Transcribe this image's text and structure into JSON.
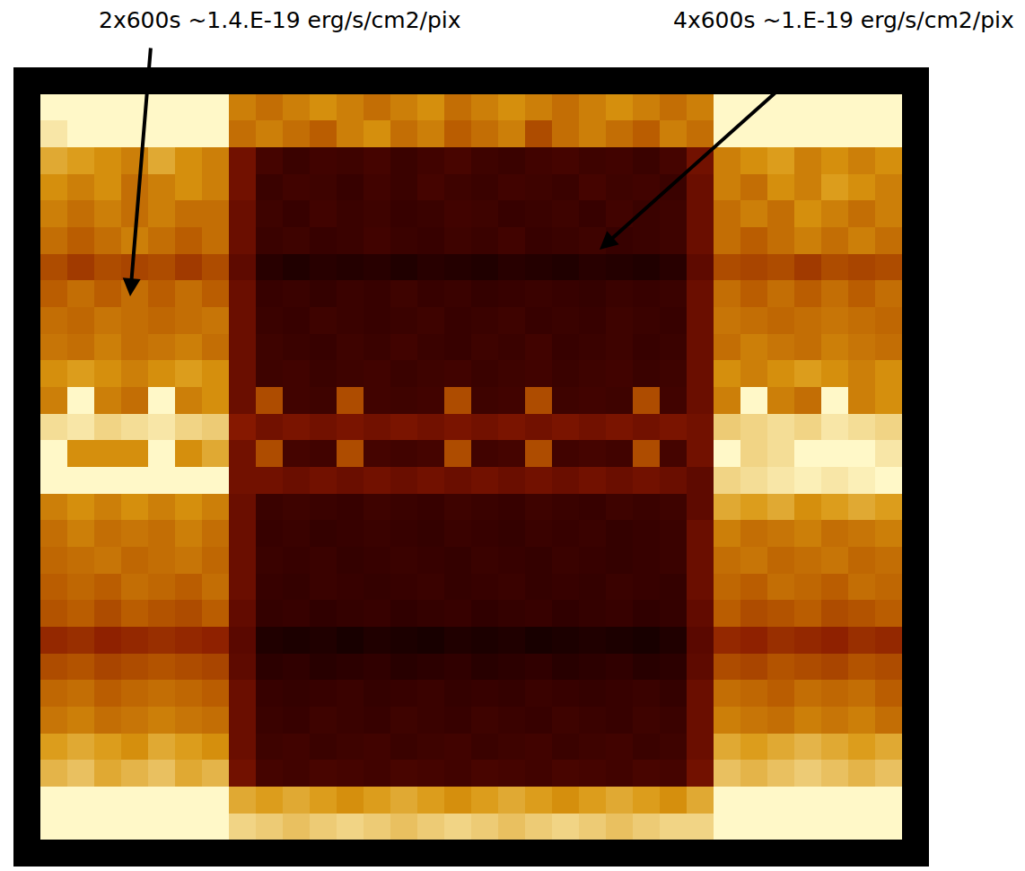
{
  "chart_data": {
    "type": "heatmap",
    "annotations": [
      "2x600s ~1.4.E-19 erg/s/cm2/pix",
      "4x600s ~1.E-19 erg/s/cm2/pix"
    ],
    "tick_labels": false,
    "zlim": [
      0.8,
      2.0
    ],
    "cells": [
      [
        null,
        null,
        null,
        null,
        null,
        null,
        null,
        null,
        null,
        null,
        null,
        null,
        null,
        null,
        null,
        null,
        null,
        null,
        null,
        null,
        null,
        null,
        null,
        null,
        null,
        null,
        null,
        null,
        null,
        null,
        null,
        null,
        null,
        null
      ],
      [
        null,
        2.0,
        2.0,
        2.0,
        2.0,
        2.0,
        2.0,
        2.0,
        1.45,
        1.4,
        1.45,
        1.5,
        1.45,
        1.4,
        1.45,
        1.5,
        1.4,
        1.45,
        1.5,
        1.45,
        1.4,
        1.45,
        1.5,
        1.45,
        1.4,
        1.45,
        2.0,
        2.0,
        2.0,
        2.0,
        2.0,
        2.0,
        2.0,
        null
      ],
      [
        null,
        1.9,
        2.0,
        2.0,
        2.0,
        2.0,
        2.0,
        2.0,
        1.4,
        1.45,
        1.4,
        1.35,
        1.45,
        1.5,
        1.4,
        1.45,
        1.35,
        1.4,
        1.45,
        1.3,
        1.4,
        1.45,
        1.4,
        1.35,
        1.45,
        1.4,
        2.0,
        2.0,
        2.0,
        2.0,
        2.0,
        2.0,
        2.0,
        null
      ],
      [
        null,
        1.6,
        1.55,
        1.5,
        1.45,
        1.6,
        1.5,
        1.45,
        1.1,
        0.98,
        0.95,
        0.97,
        0.96,
        0.98,
        0.95,
        0.97,
        0.99,
        0.96,
        0.95,
        0.97,
        0.98,
        0.96,
        0.97,
        0.95,
        0.98,
        1.1,
        1.45,
        1.5,
        1.55,
        1.45,
        1.5,
        1.45,
        1.5,
        null
      ],
      [
        null,
        1.5,
        1.45,
        1.5,
        1.4,
        1.45,
        1.5,
        1.45,
        1.1,
        0.95,
        0.97,
        0.96,
        0.94,
        0.97,
        0.95,
        0.98,
        0.96,
        0.95,
        0.97,
        0.96,
        0.95,
        0.98,
        0.96,
        0.97,
        0.95,
        1.08,
        1.45,
        1.4,
        1.5,
        1.45,
        1.55,
        1.5,
        1.45,
        null
      ],
      [
        null,
        1.45,
        1.4,
        1.45,
        1.4,
        1.45,
        1.4,
        1.4,
        1.08,
        0.96,
        0.94,
        0.97,
        0.95,
        0.96,
        0.94,
        0.95,
        0.97,
        0.96,
        0.94,
        0.95,
        0.96,
        0.94,
        0.97,
        0.95,
        0.96,
        1.08,
        1.4,
        1.45,
        1.4,
        1.5,
        1.45,
        1.4,
        1.45,
        null
      ],
      [
        null,
        1.4,
        1.35,
        1.4,
        1.45,
        1.4,
        1.35,
        1.4,
        1.08,
        0.95,
        0.96,
        0.94,
        0.95,
        0.97,
        0.95,
        0.94,
        0.96,
        0.95,
        0.97,
        0.94,
        0.95,
        0.96,
        0.94,
        0.95,
        0.96,
        1.08,
        1.4,
        1.35,
        1.4,
        1.45,
        1.4,
        1.45,
        1.4,
        null
      ],
      [
        null,
        1.3,
        1.25,
        1.3,
        1.28,
        1.3,
        1.25,
        1.3,
        1.05,
        0.9,
        0.88,
        0.9,
        0.89,
        0.9,
        0.88,
        0.9,
        0.89,
        0.88,
        0.9,
        0.89,
        0.88,
        0.9,
        0.89,
        0.88,
        0.9,
        1.05,
        1.3,
        1.28,
        1.3,
        1.25,
        1.3,
        1.28,
        1.3,
        null
      ],
      [
        null,
        1.35,
        1.4,
        1.35,
        1.4,
        1.35,
        1.4,
        1.35,
        1.08,
        0.94,
        0.95,
        0.93,
        0.95,
        0.94,
        0.96,
        0.94,
        0.95,
        0.93,
        0.94,
        0.95,
        0.94,
        0.93,
        0.95,
        0.94,
        0.95,
        1.08,
        1.4,
        1.35,
        1.4,
        1.35,
        1.4,
        1.35,
        1.4,
        null
      ],
      [
        null,
        1.4,
        1.38,
        1.42,
        1.4,
        1.38,
        1.4,
        1.42,
        1.08,
        0.95,
        0.94,
        0.96,
        0.95,
        0.94,
        0.95,
        0.96,
        0.94,
        0.95,
        0.96,
        0.94,
        0.95,
        0.94,
        0.96,
        0.95,
        0.94,
        1.08,
        1.42,
        1.4,
        1.38,
        1.4,
        1.42,
        1.4,
        1.38,
        null
      ],
      [
        null,
        1.42,
        1.4,
        1.45,
        1.4,
        1.42,
        1.45,
        1.4,
        1.08,
        0.96,
        0.95,
        0.94,
        0.96,
        0.95,
        0.97,
        0.95,
        0.94,
        0.96,
        0.95,
        0.97,
        0.94,
        0.95,
        0.96,
        0.94,
        0.95,
        1.08,
        1.4,
        1.45,
        1.42,
        1.4,
        1.45,
        1.42,
        1.4,
        null
      ],
      [
        null,
        1.5,
        1.55,
        1.5,
        1.45,
        1.5,
        1.55,
        1.5,
        1.08,
        0.96,
        0.97,
        0.95,
        0.96,
        0.97,
        0.95,
        0.96,
        0.97,
        0.95,
        0.96,
        0.97,
        0.95,
        0.96,
        0.97,
        0.95,
        0.96,
        1.08,
        1.5,
        1.45,
        1.5,
        1.55,
        1.5,
        1.45,
        1.5,
        null
      ],
      [
        null,
        1.45,
        2.0,
        1.45,
        1.4,
        2.0,
        1.45,
        1.5,
        1.08,
        1.3,
        0.97,
        0.96,
        1.3,
        0.97,
        0.96,
        0.97,
        1.3,
        0.96,
        0.97,
        1.3,
        0.96,
        0.97,
        0.96,
        1.3,
        0.97,
        1.08,
        1.45,
        2.0,
        1.45,
        1.4,
        2.0,
        1.45,
        1.5,
        null
      ],
      [
        null,
        1.85,
        1.9,
        1.8,
        1.85,
        1.9,
        1.8,
        1.75,
        1.15,
        1.1,
        1.12,
        1.1,
        1.12,
        1.1,
        1.12,
        1.1,
        1.12,
        1.1,
        1.12,
        1.1,
        1.12,
        1.1,
        1.12,
        1.1,
        1.12,
        1.1,
        1.75,
        1.8,
        1.85,
        1.8,
        1.9,
        1.85,
        1.8,
        null
      ],
      [
        null,
        2.0,
        1.5,
        1.5,
        1.5,
        2.0,
        1.5,
        1.6,
        1.1,
        1.3,
        0.98,
        0.97,
        1.3,
        0.98,
        0.97,
        0.98,
        1.3,
        0.97,
        0.98,
        1.3,
        0.97,
        0.98,
        0.97,
        1.3,
        0.98,
        1.1,
        2.0,
        1.8,
        1.85,
        2.0,
        2.0,
        2.0,
        1.9,
        null
      ],
      [
        null,
        2.0,
        2.0,
        2.0,
        2.0,
        2.0,
        2.0,
        2.0,
        1.1,
        1.1,
        1.08,
        1.1,
        1.08,
        1.1,
        1.08,
        1.1,
        1.08,
        1.1,
        1.08,
        1.1,
        1.08,
        1.1,
        1.08,
        1.1,
        1.08,
        1.05,
        1.8,
        1.85,
        1.9,
        1.95,
        1.9,
        1.95,
        2.0,
        null
      ],
      [
        null,
        1.45,
        1.5,
        1.45,
        1.5,
        1.45,
        1.5,
        1.45,
        1.08,
        0.95,
        0.96,
        0.95,
        0.94,
        0.96,
        0.95,
        0.94,
        0.96,
        0.95,
        0.94,
        0.96,
        0.95,
        0.94,
        0.96,
        0.95,
        0.96,
        1.05,
        1.6,
        1.55,
        1.6,
        1.5,
        1.55,
        1.6,
        1.55,
        null
      ],
      [
        null,
        1.4,
        1.45,
        1.4,
        1.42,
        1.4,
        1.45,
        1.4,
        1.08,
        0.94,
        0.95,
        0.93,
        0.94,
        0.95,
        0.94,
        0.93,
        0.95,
        0.94,
        0.93,
        0.95,
        0.94,
        0.95,
        0.93,
        0.94,
        0.95,
        1.08,
        1.45,
        1.4,
        1.42,
        1.45,
        1.4,
        1.42,
        1.45,
        null
      ],
      [
        null,
        1.38,
        1.4,
        1.42,
        1.38,
        1.4,
        1.42,
        1.38,
        1.08,
        0.95,
        0.94,
        0.95,
        0.93,
        0.94,
        0.95,
        0.94,
        0.93,
        0.95,
        0.94,
        0.93,
        0.95,
        0.94,
        0.93,
        0.94,
        0.95,
        1.08,
        1.4,
        1.42,
        1.38,
        1.4,
        1.42,
        1.38,
        1.4,
        null
      ],
      [
        null,
        1.35,
        1.38,
        1.35,
        1.4,
        1.38,
        1.35,
        1.4,
        1.08,
        0.94,
        0.93,
        0.95,
        0.94,
        0.93,
        0.94,
        0.95,
        0.93,
        0.94,
        0.95,
        0.93,
        0.94,
        0.93,
        0.95,
        0.94,
        0.93,
        1.08,
        1.38,
        1.35,
        1.4,
        1.38,
        1.35,
        1.4,
        1.38,
        null
      ],
      [
        null,
        1.32,
        1.35,
        1.3,
        1.35,
        1.32,
        1.3,
        1.35,
        1.06,
        0.93,
        0.94,
        0.92,
        0.93,
        0.94,
        0.92,
        0.93,
        0.94,
        0.92,
        0.93,
        0.94,
        0.92,
        0.93,
        0.94,
        0.92,
        0.93,
        1.06,
        1.35,
        1.3,
        1.32,
        1.35,
        1.3,
        1.32,
        1.35,
        null
      ],
      [
        null,
        1.2,
        1.22,
        1.18,
        1.2,
        1.22,
        1.2,
        1.18,
        1.04,
        0.88,
        0.87,
        0.88,
        0.86,
        0.88,
        0.87,
        0.86,
        0.88,
        0.87,
        0.88,
        0.86,
        0.87,
        0.88,
        0.87,
        0.86,
        0.88,
        1.04,
        1.2,
        1.18,
        1.22,
        1.2,
        1.18,
        1.22,
        1.2,
        null
      ],
      [
        null,
        1.3,
        1.32,
        1.28,
        1.3,
        1.32,
        1.3,
        1.28,
        1.05,
        0.91,
        0.92,
        0.9,
        0.91,
        0.92,
        0.9,
        0.91,
        0.92,
        0.9,
        0.91,
        0.92,
        0.9,
        0.91,
        0.92,
        0.9,
        0.91,
        1.05,
        1.3,
        1.28,
        1.32,
        1.3,
        1.28,
        1.32,
        1.3,
        null
      ],
      [
        null,
        1.38,
        1.4,
        1.35,
        1.38,
        1.4,
        1.38,
        1.35,
        1.08,
        0.94,
        0.93,
        0.94,
        0.95,
        0.93,
        0.94,
        0.95,
        0.93,
        0.94,
        0.93,
        0.95,
        0.94,
        0.93,
        0.94,
        0.95,
        0.93,
        1.08,
        1.4,
        1.38,
        1.35,
        1.4,
        1.38,
        1.4,
        1.35,
        null
      ],
      [
        null,
        1.42,
        1.45,
        1.4,
        1.42,
        1.45,
        1.42,
        1.4,
        1.08,
        0.95,
        0.94,
        0.96,
        0.95,
        0.94,
        0.96,
        0.95,
        0.94,
        0.96,
        0.95,
        0.94,
        0.96,
        0.95,
        0.94,
        0.96,
        0.95,
        1.08,
        1.45,
        1.42,
        1.4,
        1.45,
        1.42,
        1.45,
        1.4,
        null
      ],
      [
        null,
        1.55,
        1.6,
        1.55,
        1.5,
        1.6,
        1.55,
        1.5,
        1.08,
        0.96,
        0.97,
        0.95,
        0.96,
        0.97,
        0.95,
        0.96,
        0.97,
        0.95,
        0.96,
        0.97,
        0.95,
        0.96,
        0.97,
        0.95,
        0.96,
        1.08,
        1.6,
        1.55,
        1.6,
        1.65,
        1.6,
        1.55,
        1.6,
        null
      ],
      [
        null,
        1.65,
        1.7,
        1.6,
        1.65,
        1.7,
        1.6,
        1.65,
        1.1,
        0.98,
        0.97,
        0.99,
        0.98,
        0.97,
        0.99,
        0.98,
        0.97,
        0.99,
        0.98,
        0.97,
        0.99,
        0.98,
        0.97,
        0.99,
        0.98,
        1.1,
        1.7,
        1.65,
        1.7,
        1.75,
        1.7,
        1.65,
        1.7,
        null
      ],
      [
        null,
        2.0,
        2.0,
        2.0,
        2.0,
        2.0,
        2.0,
        2.0,
        1.6,
        1.55,
        1.6,
        1.55,
        1.5,
        1.55,
        1.6,
        1.55,
        1.5,
        1.55,
        1.6,
        1.55,
        1.5,
        1.55,
        1.6,
        1.55,
        1.5,
        1.6,
        2.0,
        2.0,
        2.0,
        2.0,
        2.0,
        2.0,
        2.0,
        null
      ],
      [
        null,
        2.0,
        2.0,
        2.0,
        2.0,
        2.0,
        2.0,
        2.0,
        1.8,
        1.75,
        1.7,
        1.75,
        1.8,
        1.75,
        1.7,
        1.75,
        1.8,
        1.75,
        1.7,
        1.75,
        1.8,
        1.75,
        1.7,
        1.75,
        1.8,
        1.8,
        2.0,
        2.0,
        2.0,
        2.0,
        2.0,
        2.0,
        2.0,
        null
      ],
      [
        null,
        null,
        null,
        null,
        null,
        null,
        null,
        null,
        null,
        null,
        null,
        null,
        null,
        null,
        null,
        null,
        null,
        null,
        null,
        null,
        null,
        null,
        null,
        null,
        null,
        null,
        null,
        null,
        null,
        null,
        null,
        null,
        null,
        null
      ]
    ]
  }
}
